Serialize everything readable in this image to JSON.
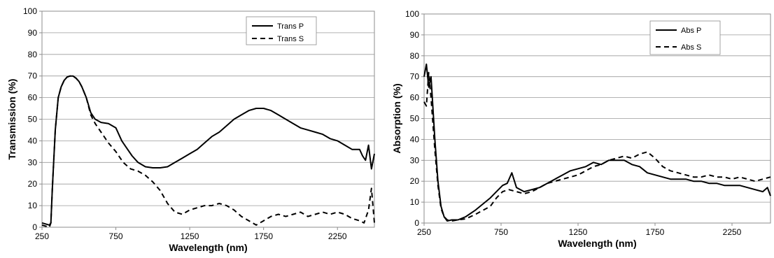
{
  "chart_data": [
    {
      "type": "line",
      "xlabel": "Wavelength (nm)",
      "ylabel": "Transmission (%)",
      "xlim": [
        250,
        2500
      ],
      "ylim": [
        0,
        100
      ],
      "xticks": [
        250,
        750,
        1250,
        1750,
        2250
      ],
      "yticks": [
        0,
        10,
        20,
        30,
        40,
        50,
        60,
        70,
        80,
        90,
        100
      ],
      "grid": "horizontal",
      "legend_position": "top-right",
      "series": [
        {
          "name": "Trans P",
          "style": "solid",
          "x": [
            250,
            300,
            310,
            320,
            340,
            360,
            380,
            400,
            420,
            440,
            460,
            480,
            500,
            520,
            550,
            580,
            610,
            650,
            700,
            750,
            790,
            820,
            860,
            900,
            950,
            1000,
            1050,
            1100,
            1150,
            1200,
            1250,
            1300,
            1350,
            1400,
            1450,
            1500,
            1550,
            1600,
            1650,
            1700,
            1750,
            1800,
            1850,
            1900,
            1950,
            2000,
            2050,
            2100,
            2150,
            2200,
            2250,
            2300,
            2350,
            2400,
            2420,
            2440,
            2460,
            2480,
            2500
          ],
          "y": [
            2,
            1,
            2,
            18,
            45,
            60,
            65,
            68,
            69.5,
            70,
            70,
            69,
            67.5,
            65,
            60,
            53,
            50,
            48.5,
            48,
            46,
            40,
            37,
            33,
            30,
            28,
            27.5,
            27.5,
            28,
            30,
            32,
            34,
            36,
            39,
            42,
            44,
            47,
            50,
            52,
            54,
            55,
            55,
            54,
            52,
            50,
            48,
            46,
            45,
            44,
            43,
            41,
            40,
            38,
            36,
            36,
            33,
            31,
            38,
            27,
            34
          ]
        },
        {
          "name": "Trans S",
          "style": "dashed",
          "x": [
            250,
            300,
            310,
            320,
            340,
            360,
            380,
            400,
            420,
            440,
            460,
            480,
            500,
            520,
            550,
            580,
            610,
            650,
            700,
            750,
            800,
            850,
            900,
            950,
            1000,
            1050,
            1100,
            1150,
            1200,
            1250,
            1300,
            1350,
            1400,
            1450,
            1500,
            1550,
            1600,
            1650,
            1700,
            1750,
            1800,
            1850,
            1900,
            1950,
            2000,
            2050,
            2100,
            2150,
            2200,
            2250,
            2300,
            2350,
            2400,
            2430,
            2460,
            2480,
            2500
          ],
          "y": [
            1,
            0,
            2,
            18,
            45,
            60,
            65,
            68,
            69.5,
            70,
            70,
            69,
            67.5,
            65,
            60,
            52,
            48,
            44,
            39,
            35,
            30,
            27,
            26,
            24,
            21,
            17,
            11,
            7,
            6,
            8,
            9,
            10,
            10,
            11,
            10,
            8,
            5,
            3,
            1,
            3,
            5,
            6,
            5,
            6,
            7,
            5,
            6,
            7,
            6,
            7,
            6,
            4,
            3,
            2,
            8,
            18,
            2
          ]
        }
      ]
    },
    {
      "type": "line",
      "xlabel": "Wavelength (nm)",
      "ylabel": "Absorption (%)",
      "xlim": [
        250,
        2500
      ],
      "ylim": [
        0,
        100
      ],
      "xticks": [
        250,
        750,
        1250,
        1750,
        2250
      ],
      "yticks": [
        0,
        10,
        20,
        30,
        40,
        50,
        60,
        70,
        80,
        90,
        100
      ],
      "grid": "horizontal",
      "legend_position": "top-right",
      "series": [
        {
          "name": "Abs P",
          "style": "solid",
          "x": [
            250,
            265,
            280,
            295,
            305,
            320,
            340,
            360,
            380,
            400,
            430,
            470,
            520,
            580,
            630,
            680,
            720,
            760,
            790,
            820,
            850,
            900,
            950,
            1000,
            1050,
            1100,
            1150,
            1200,
            1250,
            1300,
            1350,
            1400,
            1450,
            1500,
            1550,
            1600,
            1650,
            1700,
            1750,
            1800,
            1850,
            1900,
            1950,
            2000,
            2050,
            2100,
            2150,
            2200,
            2250,
            2300,
            2350,
            2400,
            2450,
            2480,
            2500
          ],
          "y": [
            70,
            76,
            65,
            70,
            58,
            40,
            20,
            8,
            3,
            1,
            1.5,
            1.5,
            3,
            6,
            9,
            12,
            15,
            18,
            19,
            24,
            17,
            15,
            16,
            17,
            19,
            21,
            23,
            25,
            26,
            27,
            29,
            28,
            30,
            30,
            30,
            28,
            27,
            24,
            23,
            22,
            21,
            21,
            21,
            20,
            20,
            19,
            19,
            18,
            18,
            18,
            17,
            16,
            15,
            17,
            13
          ]
        },
        {
          "name": "Abs S",
          "style": "dashed",
          "x": [
            250,
            265,
            280,
            295,
            305,
            320,
            340,
            360,
            380,
            400,
            430,
            470,
            520,
            580,
            630,
            680,
            720,
            760,
            800,
            850,
            900,
            950,
            1000,
            1050,
            1100,
            1150,
            1200,
            1250,
            1300,
            1350,
            1400,
            1450,
            1500,
            1550,
            1600,
            1650,
            1700,
            1750,
            1800,
            1850,
            1900,
            1950,
            2000,
            2050,
            2100,
            2150,
            2200,
            2250,
            2300,
            2350,
            2400,
            2450,
            2500
          ],
          "y": [
            58,
            56,
            72,
            60,
            50,
            35,
            18,
            7,
            3,
            1.5,
            1,
            1.5,
            2,
            4,
            6,
            8,
            12,
            15,
            16,
            15,
            14,
            15,
            17,
            19,
            20,
            21,
            22,
            23,
            25,
            27,
            28,
            30,
            31,
            32,
            31,
            33,
            34,
            31,
            27,
            25,
            24,
            23,
            22,
            22,
            23,
            22,
            22,
            21,
            22,
            21,
            20,
            21,
            22
          ]
        }
      ]
    }
  ]
}
